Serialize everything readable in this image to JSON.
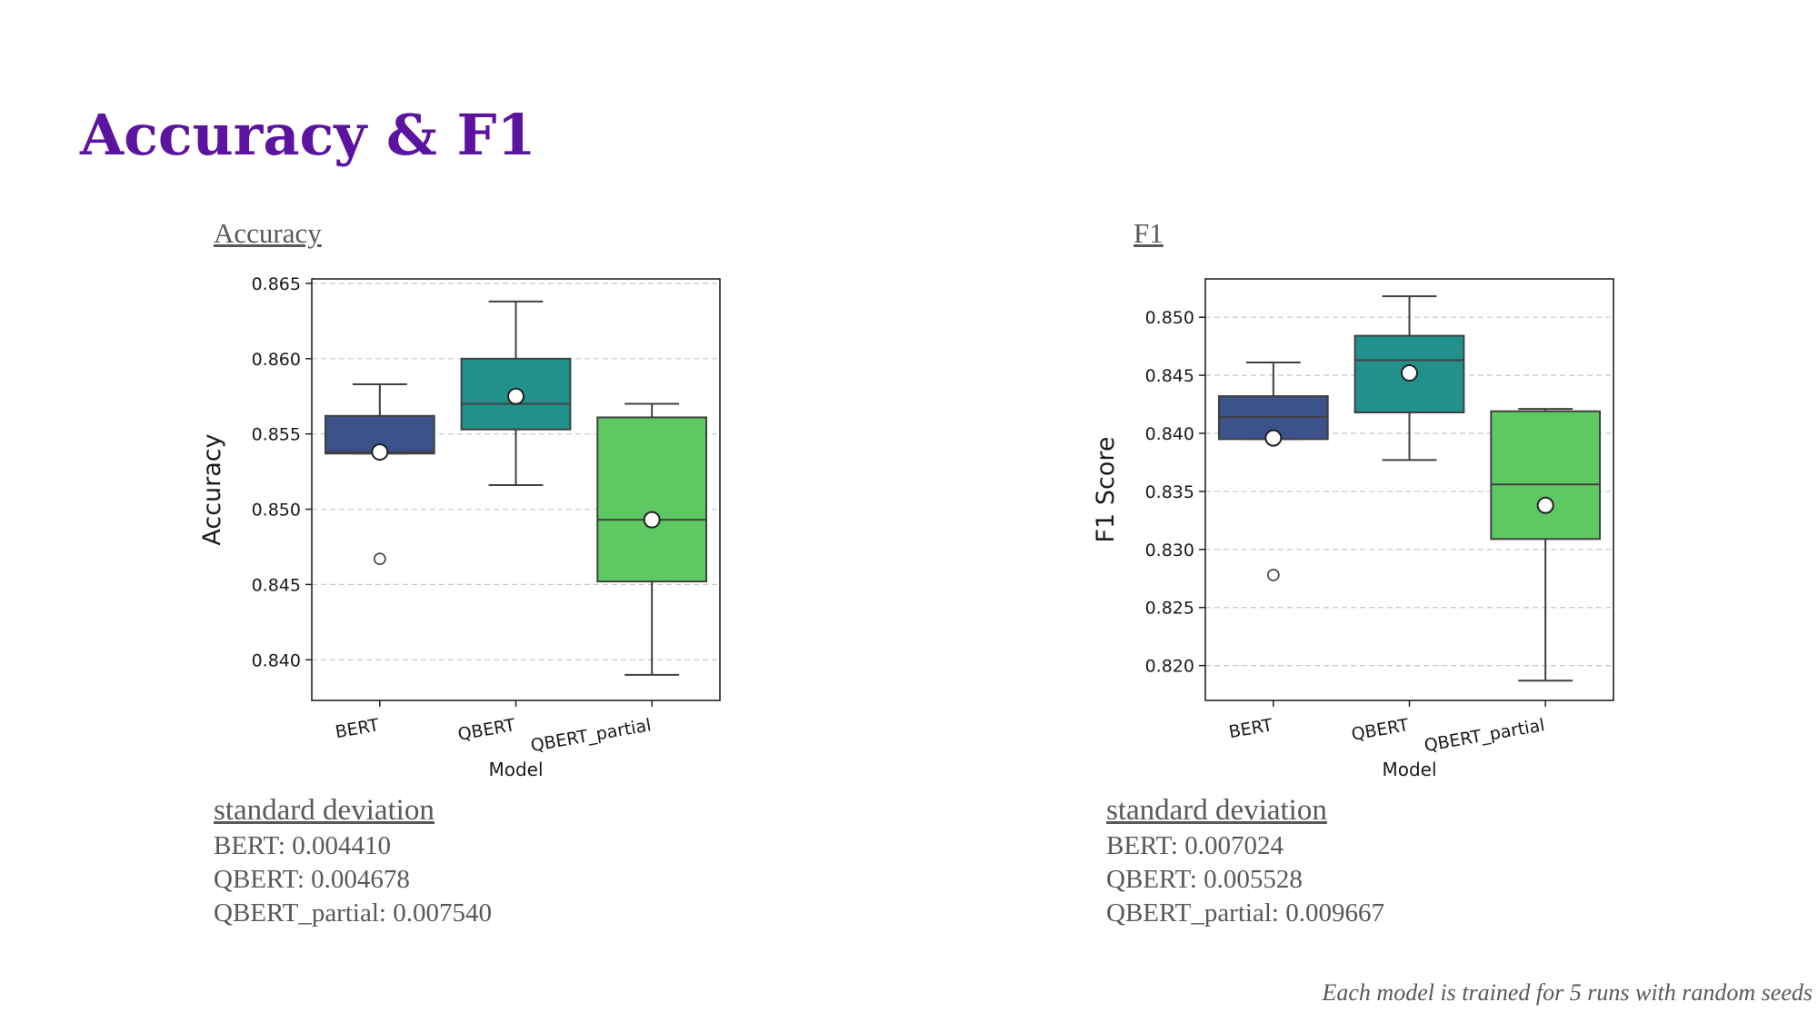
{
  "slide": {
    "title": "Accuracy & F1",
    "footnote": "Each model is trained for 5 runs with random seeds"
  },
  "panels": [
    {
      "caption": "Accuracy",
      "std_heading": "standard deviation",
      "std_lines": [
        "BERT: 0.004410",
        "QBERT: 0.004678",
        "QBERT_partial: 0.007540"
      ]
    },
    {
      "caption": "F1",
      "std_heading": "standard deviation",
      "std_lines": [
        "BERT: 0.007024",
        "QBERT: 0.005528",
        "QBERT_partial: 0.009667"
      ]
    }
  ],
  "chart_data": [
    {
      "type": "box",
      "xlabel": "Model",
      "ylabel": "Accuracy",
      "categories": [
        "BERT",
        "QBERT",
        "QBERT_partial"
      ],
      "colors": [
        "#3b528b",
        "#21918c",
        "#5ec962"
      ],
      "ylim": [
        0.8373,
        0.8653
      ],
      "yticks": [
        0.84,
        0.845,
        0.85,
        0.855,
        0.86,
        0.865
      ],
      "tick_decimals": 3,
      "grid": true,
      "boxes": [
        {
          "whisker_low": 0.8537,
          "q1": 0.8537,
          "median": 0.8538,
          "q3": 0.8562,
          "whisker_high": 0.8583,
          "mean": 0.8538,
          "outliers": [
            0.8467
          ]
        },
        {
          "whisker_low": 0.8516,
          "q1": 0.8553,
          "median": 0.857,
          "q3": 0.86,
          "whisker_high": 0.8638,
          "mean": 0.8575,
          "outliers": []
        },
        {
          "whisker_low": 0.839,
          "q1": 0.8452,
          "median": 0.8493,
          "q3": 0.8561,
          "whisker_high": 0.857,
          "mean": 0.8493,
          "outliers": []
        }
      ]
    },
    {
      "type": "box",
      "xlabel": "Model",
      "ylabel": "F1 Score",
      "categories": [
        "BERT",
        "QBERT",
        "QBERT_partial"
      ],
      "colors": [
        "#3b528b",
        "#21918c",
        "#5ec962"
      ],
      "ylim": [
        0.817,
        0.8533
      ],
      "yticks": [
        0.82,
        0.825,
        0.83,
        0.835,
        0.84,
        0.845,
        0.85
      ],
      "tick_decimals": 3,
      "grid": true,
      "boxes": [
        {
          "whisker_low": 0.8395,
          "q1": 0.8395,
          "median": 0.8414,
          "q3": 0.8432,
          "whisker_high": 0.8461,
          "mean": 0.8396,
          "outliers": [
            0.8278
          ]
        },
        {
          "whisker_low": 0.8377,
          "q1": 0.8418,
          "median": 0.8463,
          "q3": 0.8484,
          "whisker_high": 0.8518,
          "mean": 0.8452,
          "outliers": []
        },
        {
          "whisker_low": 0.8187,
          "q1": 0.8309,
          "median": 0.8356,
          "q3": 0.8419,
          "whisker_high": 0.8421,
          "mean": 0.8338,
          "outliers": []
        }
      ]
    }
  ]
}
